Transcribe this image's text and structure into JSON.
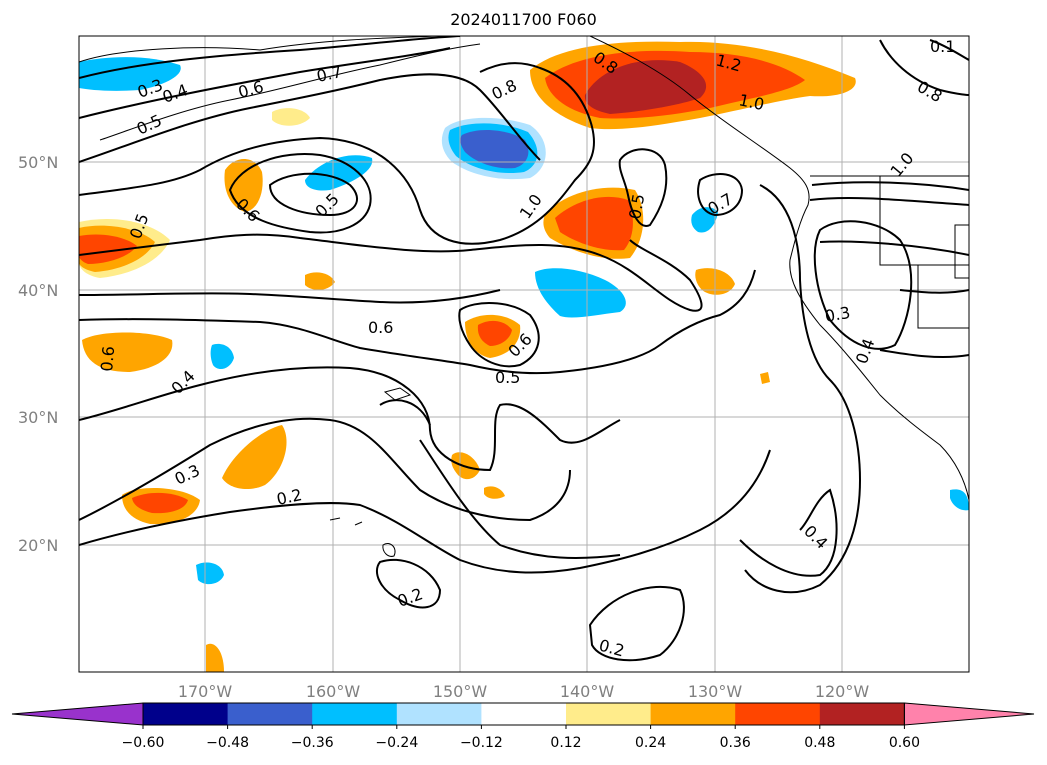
{
  "title": "2024011700 F060",
  "map": {
    "lat_labels": [
      "50°N",
      "40°N",
      "30°N",
      "20°N"
    ],
    "lon_labels": [
      "170°W",
      "160°W",
      "150°W",
      "140°W",
      "130°W",
      "120°W"
    ],
    "contour_labels": [
      "0.3",
      "0.4",
      "0.5",
      "0.6",
      "0.7",
      "0.8",
      "1.2",
      "1.0",
      "0.8",
      "0.8",
      "0.6",
      "0.5",
      "1.0",
      "0.5",
      "0.7",
      "1.0",
      "0.5",
      "0.6",
      "0.3",
      "0.4",
      "0.6",
      "0.6",
      "0.5",
      "0.4",
      "0.3",
      "0.2",
      "0.4",
      "0.2",
      "0.2",
      "0.1"
    ]
  },
  "colorbar": {
    "ticks": [
      "−0.60",
      "−0.48",
      "−0.36",
      "−0.24",
      "−0.12",
      "0.12",
      "0.24",
      "0.36",
      "0.48",
      "0.60"
    ],
    "colors": [
      "#9932cc",
      "#00008b",
      "#3a5fcd",
      "#00bfff",
      "#b0e2ff",
      "#ffffff",
      "#ffec8b",
      "#ffa500",
      "#ff4500",
      "#b22222",
      "#ff82ab"
    ]
  }
}
